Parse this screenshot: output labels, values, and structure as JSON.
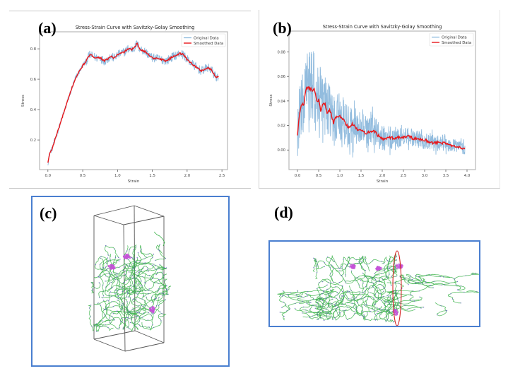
{
  "figure": {
    "panels": [
      {
        "id": "a",
        "label": "(a)"
      },
      {
        "id": "b",
        "label": "(b)"
      },
      {
        "id": "c",
        "label": "(c)",
        "description": "3D simulation box with polymer chains (green/blue) and pink clusters"
      },
      {
        "id": "d",
        "label": "(d)",
        "description": "Stretched polymer network with red ellipse highlighting a cross-section"
      }
    ],
    "colors": {
      "original": "#7fb0d8",
      "smoothed": "#e8171b",
      "panel_border": "#4a7fd0",
      "chain_green": "#3cb44a",
      "chain_blue": "#6a5acd",
      "cluster_pink": "#c552d8",
      "highlight": "#d62424"
    }
  },
  "chart_data": [
    {
      "type": "line",
      "panel": "a",
      "title": "Stress-Strain Curve with Savitzky-Golay Smoothing",
      "xlabel": "Strain",
      "ylabel": "Stress",
      "xlim": [
        -0.12,
        2.58
      ],
      "ylim": [
        0.005,
        0.912
      ],
      "xticks": [
        0.0,
        0.5,
        1.0,
        1.5,
        2.0,
        2.5
      ],
      "xtick_labels": [
        "0.0",
        "0.5",
        "1.0",
        "1.5",
        "2.0",
        "2.5"
      ],
      "yticks": [
        0.2,
        0.4,
        0.6,
        0.8
      ],
      "ytick_labels": [
        "0.2",
        "0.4",
        "0.6",
        "0.8"
      ],
      "legend": {
        "position": "top-right",
        "entries": [
          "Original Data",
          "Smoothed Data"
        ]
      },
      "grid": false,
      "noise_amplitude": 0.03,
      "series": [
        {
          "name": "Smoothed Data",
          "x": [
            0.0,
            0.03,
            0.06,
            0.1,
            0.15,
            0.2,
            0.25,
            0.3,
            0.35,
            0.4,
            0.45,
            0.5,
            0.55,
            0.6,
            0.65,
            0.7,
            0.75,
            0.8,
            0.85,
            0.9,
            0.95,
            1.0,
            1.05,
            1.1,
            1.15,
            1.2,
            1.25,
            1.28,
            1.32,
            1.4,
            1.5,
            1.6,
            1.7,
            1.8,
            1.9,
            1.95,
            2.0,
            2.1,
            2.2,
            2.3,
            2.35,
            2.42,
            2.45
          ],
          "y": [
            0.05,
            0.12,
            0.14,
            0.2,
            0.27,
            0.34,
            0.41,
            0.48,
            0.55,
            0.61,
            0.65,
            0.69,
            0.72,
            0.76,
            0.75,
            0.74,
            0.745,
            0.72,
            0.73,
            0.75,
            0.74,
            0.76,
            0.77,
            0.78,
            0.8,
            0.795,
            0.81,
            0.835,
            0.8,
            0.78,
            0.74,
            0.735,
            0.72,
            0.75,
            0.77,
            0.76,
            0.73,
            0.69,
            0.655,
            0.675,
            0.66,
            0.61,
            0.62
          ]
        },
        {
          "name": "Original Data",
          "description": "Noisy raw signal around smoothed curve (approx. ±0.03)"
        }
      ]
    },
    {
      "type": "line",
      "panel": "b",
      "title": "Stress-Strain Curve with Savitzky-Golay Smoothing",
      "xlabel": "Strain",
      "ylabel": "Stress",
      "xlim": [
        -0.2,
        4.2
      ],
      "ylim": [
        -0.016,
        0.097
      ],
      "xticks": [
        0.0,
        0.5,
        1.0,
        1.5,
        2.0,
        2.5,
        3.0,
        3.5,
        4.0
      ],
      "xtick_labels": [
        "0.0",
        "0.5",
        "1.0",
        "1.5",
        "2.0",
        "2.5",
        "3.0",
        "3.5",
        "4.0"
      ],
      "yticks": [
        0.0,
        0.02,
        0.04,
        0.06,
        0.08
      ],
      "ytick_labels": [
        "0.00",
        "0.02",
        "0.04",
        "0.06",
        "0.08"
      ],
      "legend": {
        "position": "top-right",
        "entries": [
          "Original Data",
          "Smoothed Data"
        ]
      },
      "grid": false,
      "series": [
        {
          "name": "Smoothed Data",
          "x": [
            0.0,
            0.05,
            0.1,
            0.15,
            0.2,
            0.25,
            0.3,
            0.35,
            0.4,
            0.45,
            0.5,
            0.55,
            0.6,
            0.65,
            0.7,
            0.75,
            0.8,
            0.85,
            0.9,
            0.95,
            1.0,
            1.1,
            1.2,
            1.3,
            1.4,
            1.5,
            1.6,
            1.7,
            1.8,
            1.9,
            2.0,
            2.2,
            2.4,
            2.6,
            2.8,
            3.0,
            3.2,
            3.4,
            3.6,
            3.8,
            3.95
          ],
          "y": [
            0.012,
            0.03,
            0.038,
            0.036,
            0.05,
            0.051,
            0.05,
            0.049,
            0.05,
            0.04,
            0.041,
            0.032,
            0.037,
            0.038,
            0.03,
            0.033,
            0.029,
            0.022,
            0.027,
            0.026,
            0.028,
            0.024,
            0.018,
            0.021,
            0.017,
            0.016,
            0.014,
            0.015,
            0.016,
            0.012,
            0.009,
            0.01,
            0.01,
            0.011,
            0.009,
            0.008,
            0.006,
            0.006,
            0.004,
            0.003,
            0.001
          ]
        },
        {
          "name": "Original Data",
          "description": "Highly noisy raw signal; spikes up to ~0.088 near strain 0.4 and down to ~-0.01; noise decays with strain",
          "noise_envelope": {
            "x": [
              0.0,
              0.2,
              0.4,
              0.8,
              1.2,
              1.6,
              2.0,
              2.5,
              3.0,
              3.5,
              3.95
            ],
            "amplitude": [
              0.02,
              0.03,
              0.032,
              0.022,
              0.018,
              0.014,
              0.011,
              0.008,
              0.007,
              0.006,
              0.005
            ]
          }
        }
      ]
    }
  ]
}
